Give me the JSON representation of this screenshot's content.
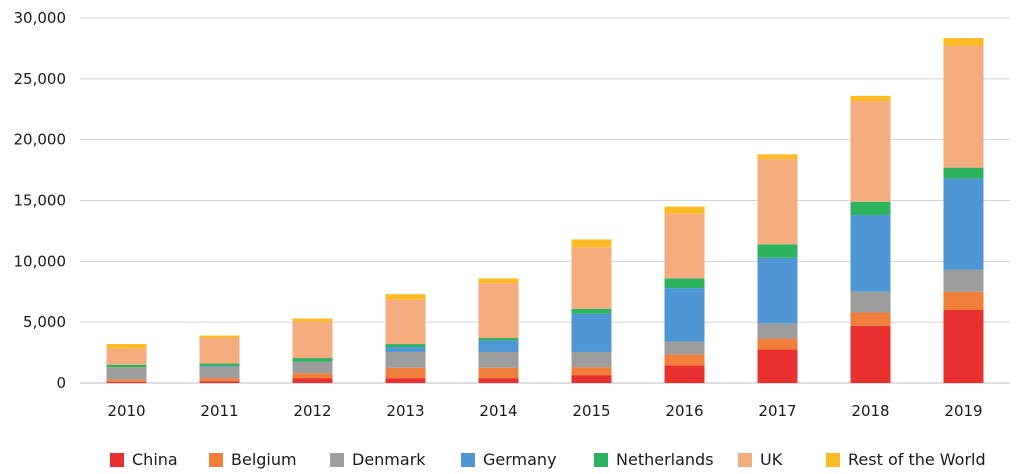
{
  "chart_data": {
    "type": "bar",
    "stacked": true,
    "title": "",
    "xlabel": "",
    "ylabel": "",
    "categories": [
      "2010",
      "2011",
      "2012",
      "2013",
      "2014",
      "2015",
      "2016",
      "2017",
      "2018",
      "2019"
    ],
    "ylim": [
      0,
      30000
    ],
    "y_ticks": [
      0,
      5000,
      10000,
      15000,
      20000,
      25000,
      30000
    ],
    "y_tick_labels": [
      "0",
      "5,000",
      "10,000",
      "15,000",
      "20,000",
      "25,000",
      "30,000"
    ],
    "grid": true,
    "legend_position": "bottom",
    "series": [
      {
        "name": "China",
        "color": "#e8312e",
        "values": [
          100,
          150,
          400,
          400,
          400,
          650,
          1450,
          2750,
          4700,
          6000
        ]
      },
      {
        "name": "Belgium",
        "color": "#f07f3b",
        "values": [
          200,
          250,
          400,
          850,
          850,
          650,
          900,
          900,
          1100,
          1500
        ]
      },
      {
        "name": "Denmark",
        "color": "#9d9d9d",
        "values": [
          1000,
          950,
          950,
          1300,
          1300,
          1250,
          1050,
          1250,
          1700,
          1800
        ]
      },
      {
        "name": "Germany",
        "color": "#4f97d4",
        "values": [
          0,
          50,
          0,
          400,
          950,
          3150,
          4400,
          5400,
          6300,
          7500
        ]
      },
      {
        "name": "Netherlands",
        "color": "#2db35d",
        "values": [
          200,
          200,
          300,
          250,
          200,
          400,
          800,
          1100,
          1100,
          900
        ]
      },
      {
        "name": "UK",
        "color": "#f5ad80",
        "values": [
          1350,
          2100,
          3000,
          3650,
          4500,
          5050,
          5300,
          7000,
          8250,
          10000
        ]
      },
      {
        "name": "Rest of the World",
        "color": "#fbbb26",
        "values": [
          350,
          200,
          250,
          450,
          400,
          650,
          600,
          400,
          450,
          650
        ]
      }
    ]
  }
}
